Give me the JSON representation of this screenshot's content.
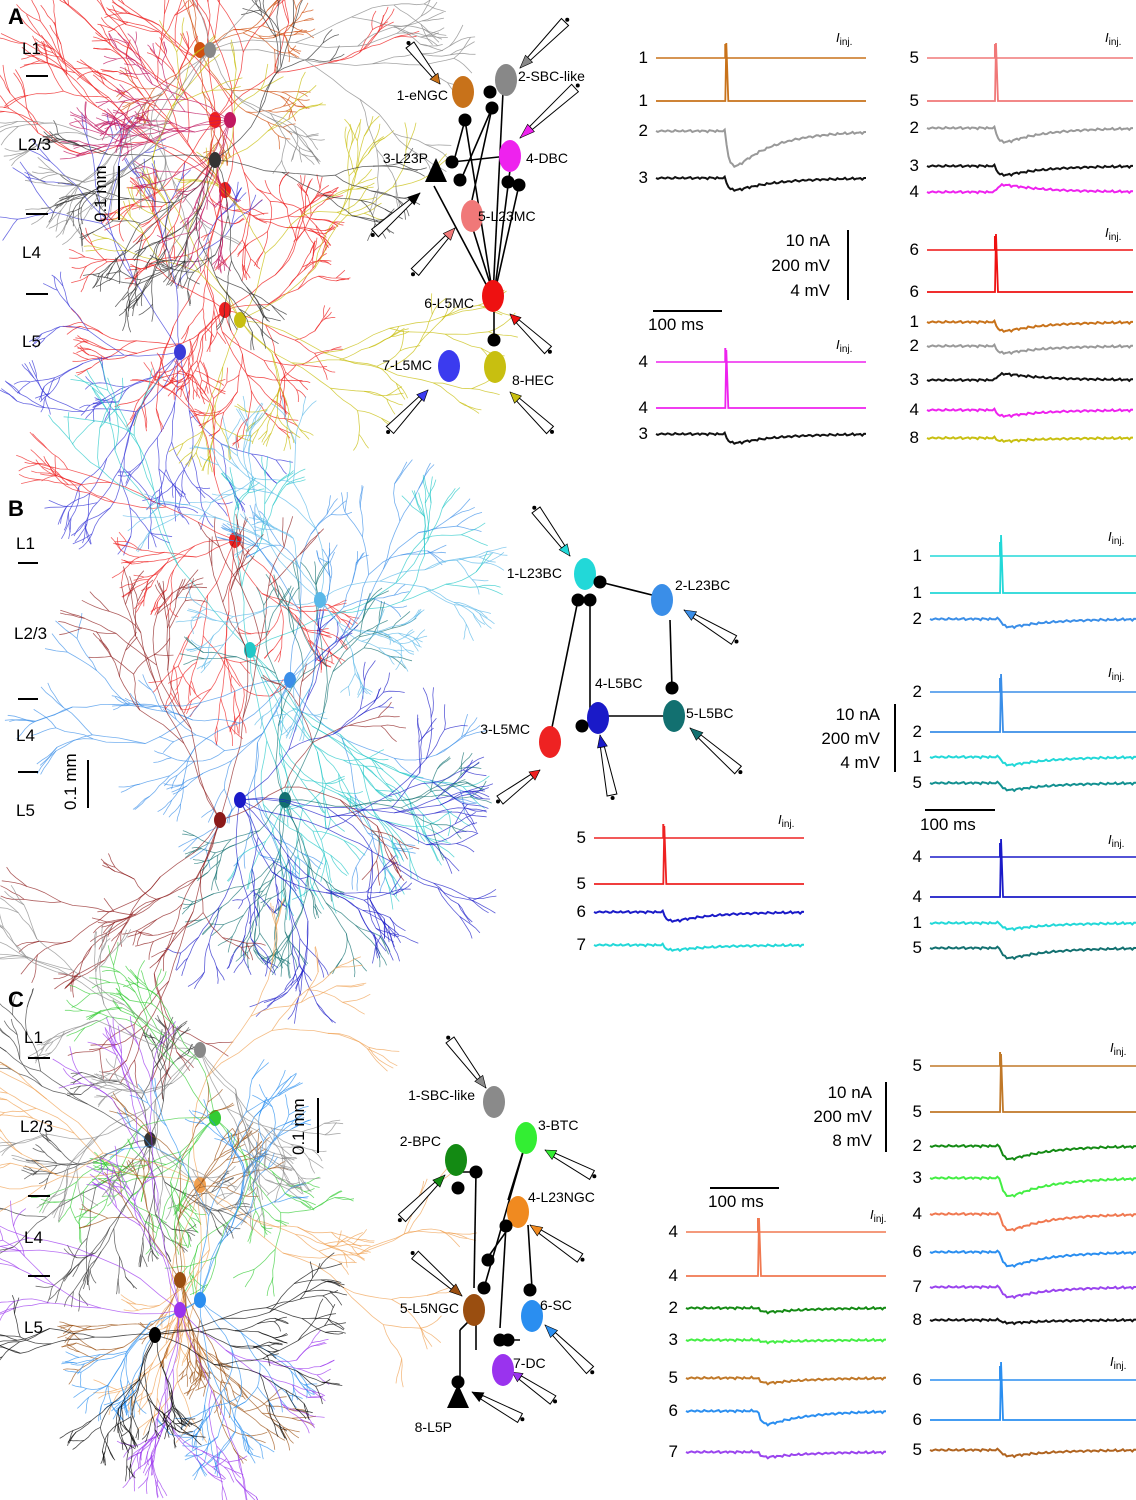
{
  "panels": {
    "A": {
      "letter": "A",
      "layers": [
        "L1",
        "L2/3",
        "L4",
        "L5"
      ],
      "morph_scale": "0.1 mm",
      "cells": [
        {
          "label": "1-eNGC",
          "color": "#c8721a"
        },
        {
          "label": "2-SBC-like",
          "color": "#888888"
        },
        {
          "label": "3-L23P",
          "color": "#000000"
        },
        {
          "label": "4-DBC",
          "color": "#ee22ee"
        },
        {
          "label": "5-L23MC",
          "color": "#f07878"
        },
        {
          "label": "6-L5MC",
          "color": "#ee1111"
        },
        {
          "label": "7-L5MC",
          "color": "#3b3bef"
        },
        {
          "label": "8-HEC",
          "color": "#c8bf10"
        }
      ],
      "scale_bar": {
        "current": "10 nA",
        "voltage": "200 mV",
        "psp": "4 mV",
        "time": "100 ms"
      },
      "iinj_label": "I",
      "iinj_sub": "inj.",
      "trace_blocks": [
        {
          "labels": [
            "1",
            "1",
            "2",
            "3"
          ],
          "colors": [
            "#c8721a",
            "#c8721a",
            "#999999",
            "#111111"
          ]
        },
        {
          "labels": [
            "5",
            "5",
            "2",
            "3",
            "4"
          ],
          "colors": [
            "#f07878",
            "#f07878",
            "#999999",
            "#111111",
            "#ee22ee"
          ]
        },
        {
          "labels": [
            "6",
            "6",
            "1",
            "2",
            "3",
            "4",
            "8"
          ],
          "colors": [
            "#ee1111",
            "#ee1111",
            "#c8721a",
            "#999999",
            "#111111",
            "#ee22ee",
            "#c8bf10"
          ]
        },
        {
          "labels": [
            "4",
            "4",
            "3"
          ],
          "colors": [
            "#ee22ee",
            "#ee22ee",
            "#111111"
          ]
        }
      ]
    },
    "B": {
      "letter": "B",
      "layers": [
        "L1",
        "L2/3",
        "L4",
        "L5"
      ],
      "morph_scale": "0.1 mm",
      "cells": [
        {
          "label": "1-L23BC",
          "color": "#22d8d8"
        },
        {
          "label": "2-L23BC",
          "color": "#3a8ee8"
        },
        {
          "label": "3-L5MC",
          "color": "#ee2222"
        },
        {
          "label": "4-L5BC",
          "color": "#1a1ac8"
        },
        {
          "label": "5-L5BC",
          "color": "#127070"
        }
      ],
      "scale_bar": {
        "current": "10 nA",
        "voltage": "200 mV",
        "psp": "4 mV",
        "time": "100 ms"
      },
      "trace_blocks": [
        {
          "labels": [
            "1",
            "1",
            "2"
          ],
          "colors": [
            "#22d8d8",
            "#22d8d8",
            "#3a8ee8"
          ]
        },
        {
          "labels": [
            "2",
            "2",
            "1",
            "5"
          ],
          "colors": [
            "#3a8ee8",
            "#3a8ee8",
            "#22d8d8",
            "#129090"
          ]
        },
        {
          "labels": [
            "4",
            "4",
            "1",
            "5"
          ],
          "colors": [
            "#1a1ac8",
            "#1a1ac8",
            "#22d8d8",
            "#127070"
          ]
        },
        {
          "labels": [
            "5",
            "5",
            "6",
            "7"
          ],
          "colors": [
            "#ee2222",
            "#ee2222",
            "#1a1ac8",
            "#22d8d8"
          ]
        }
      ]
    },
    "C": {
      "letter": "C",
      "layers": [
        "L1",
        "L2/3",
        "L4",
        "L5"
      ],
      "morph_scale": "0.1 mm",
      "cells": [
        {
          "label": "1-SBC-like",
          "color": "#8a8a8a"
        },
        {
          "label": "2-BPC",
          "color": "#138a13"
        },
        {
          "label": "3-BTC",
          "color": "#33ee33"
        },
        {
          "label": "4-L23NGC",
          "color": "#f08a20"
        },
        {
          "label": "5-L5NGC",
          "color": "#9a4e10"
        },
        {
          "label": "6-SC",
          "color": "#2a8ef0"
        },
        {
          "label": "7-DC",
          "color": "#9a33ee"
        },
        {
          "label": "8-L5P",
          "color": "#000000"
        }
      ],
      "scale_bar": {
        "current": "10 nA",
        "voltage": "200 mV",
        "psp": "8 mV",
        "time": "100 ms"
      },
      "trace_blocks": [
        {
          "labels": [
            "5",
            "5",
            "2",
            "3",
            "4",
            "6",
            "7",
            "8"
          ],
          "colors": [
            "#c07828",
            "#c07828",
            "#138a13",
            "#44ee44",
            "#f07850",
            "#2a8ef0",
            "#9a44ee",
            "#111111"
          ]
        },
        {
          "labels": [
            "4",
            "4",
            "2",
            "3",
            "5",
            "6",
            "7"
          ],
          "colors": [
            "#f07850",
            "#f07850",
            "#138a13",
            "#44ee44",
            "#c07828",
            "#2a8ef0",
            "#9a44ee"
          ]
        },
        {
          "labels": [
            "6",
            "6",
            "5"
          ],
          "colors": [
            "#2a8ef0",
            "#2a8ef0",
            "#b06420"
          ]
        }
      ]
    }
  }
}
